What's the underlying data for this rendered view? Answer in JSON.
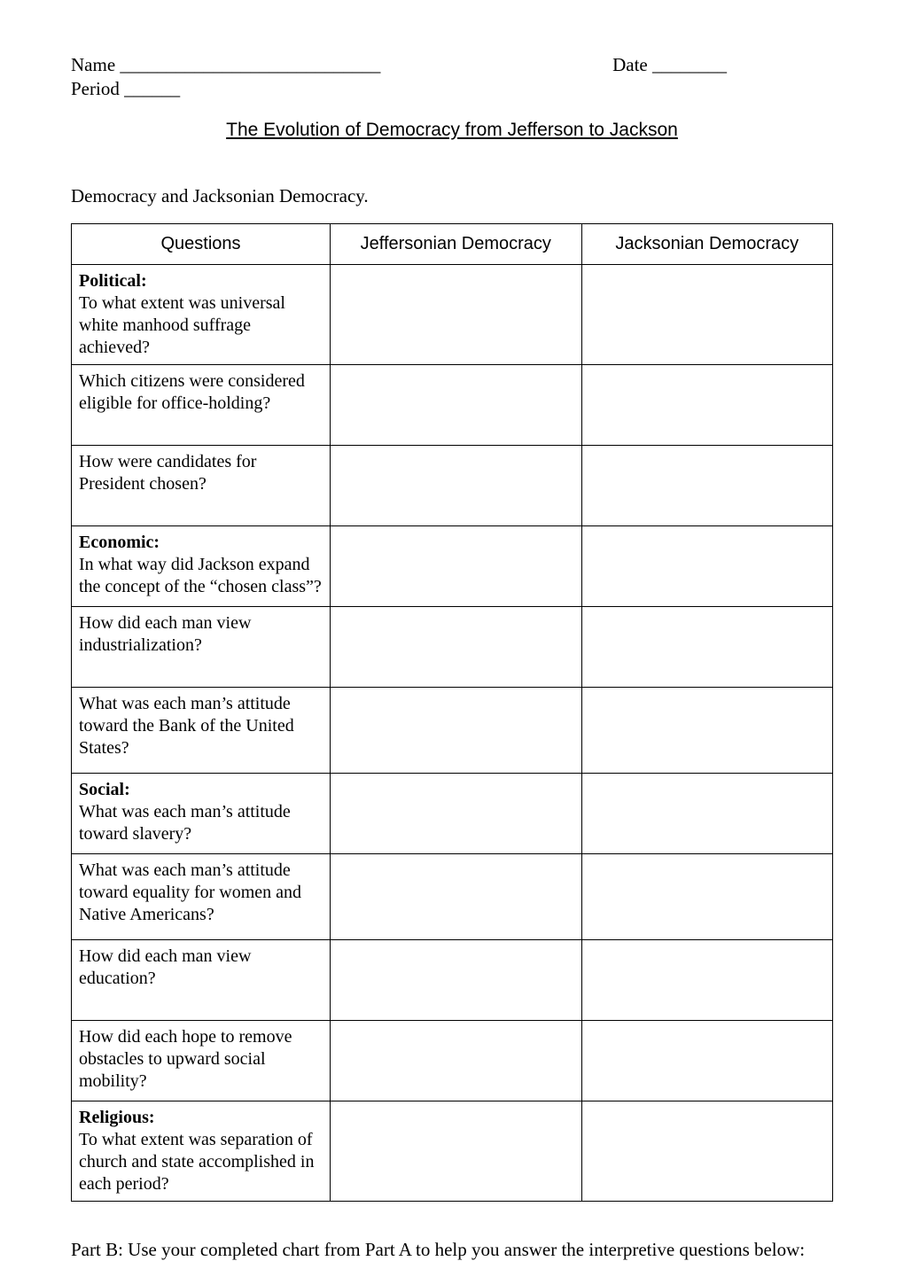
{
  "header": {
    "name_label": "Name ____________________________",
    "date_label": "Date ________",
    "period_label": "Period ______"
  },
  "title": "The Evolution of Democracy from Jefferson to Jackson",
  "subtitle": "Democracy and Jacksonian Democracy.",
  "table": {
    "columns": [
      "Questions",
      "Jeffersonian Democracy",
      "Jacksonian Democracy"
    ],
    "rows": [
      {
        "category": "Political:",
        "question": "To what extent was universal white manhood suffrage achieved?",
        "min_height": 78
      },
      {
        "category": "",
        "question": "Which citizens were considered eligible for office-holding?",
        "min_height": 78
      },
      {
        "category": "",
        "question": "How were candidates for President chosen?",
        "min_height": 78
      },
      {
        "category": "Economic:",
        "question": "In what way did Jackson expand the concept of the “chosen class”?",
        "min_height": 78
      },
      {
        "category": "",
        "question": "How did each man view industrialization?",
        "min_height": 78
      },
      {
        "category": "",
        "question": "What was each man’s attitude toward the Bank of the United States?",
        "min_height": 84
      },
      {
        "category": "Social:",
        "question": "What was each man’s attitude toward slavery?",
        "min_height": 78
      },
      {
        "category": "",
        "question": "What was each man’s attitude toward equality for women and Native Americans?",
        "min_height": 84
      },
      {
        "category": "",
        "question": "How did each man view education?",
        "min_height": 78
      },
      {
        "category": "",
        "question": "How did each hope to remove obstacles to upward social mobility?",
        "min_height": 78
      },
      {
        "category": "Religious:",
        "question": "To what extent was separation of church and state accomplished in each period?",
        "min_height": 96
      }
    ]
  },
  "partb": "Part B: Use your completed chart from Part A to help you answer the interpretive questions below:"
}
